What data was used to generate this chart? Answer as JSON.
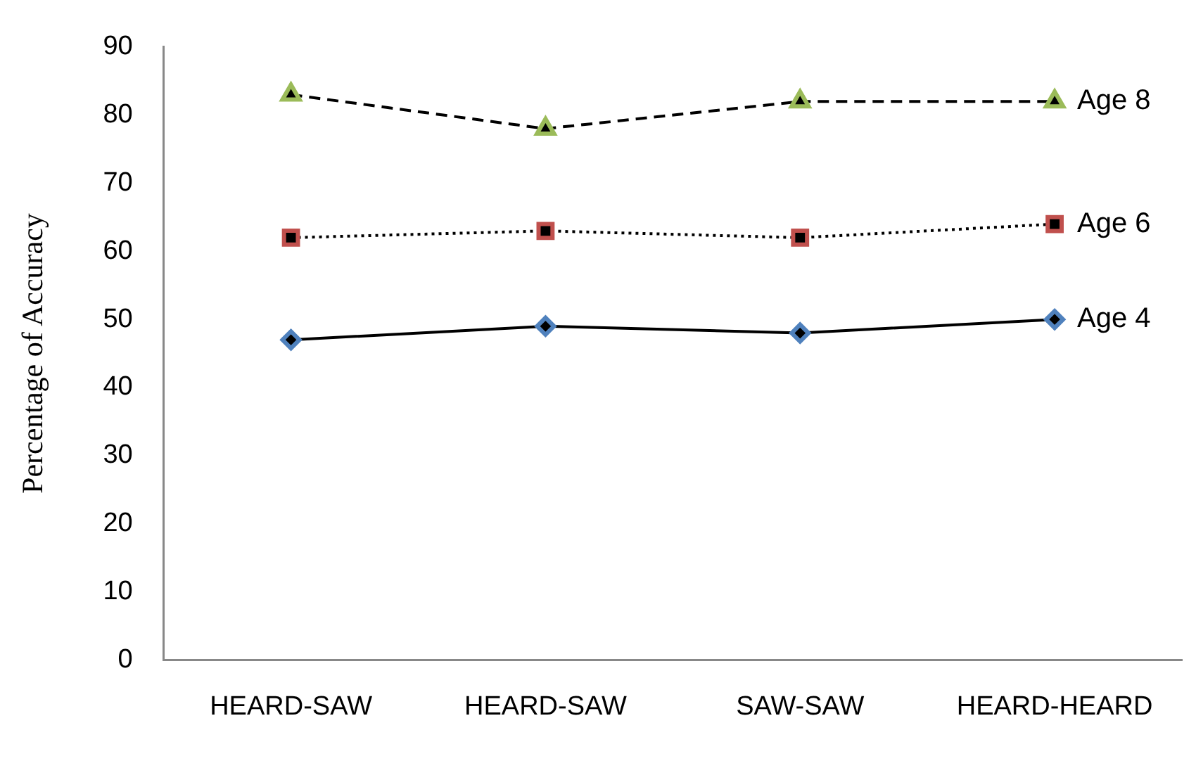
{
  "chart_data": {
    "type": "line",
    "ylabel": "Percentage of Accuracy",
    "categories": [
      "HEARD-SAW",
      "HEARD-SAW",
      "SAW-SAW",
      "HEARD-HEARD"
    ],
    "ylim": [
      0,
      90
    ],
    "yticks": [
      0,
      10,
      20,
      30,
      40,
      50,
      60,
      70,
      80,
      90
    ],
    "grid": false,
    "legend": false,
    "series": [
      {
        "name": "Age 4",
        "color": "#4f81bd",
        "marker": "diamond",
        "line_style": "solid",
        "values": [
          47,
          49,
          48,
          50
        ]
      },
      {
        "name": "Age 6",
        "color": "#c0504d",
        "marker": "square",
        "line_style": "dotted",
        "values": [
          62,
          63,
          62,
          64
        ]
      },
      {
        "name": "Age 8",
        "color": "#9bbb59",
        "marker": "triangle",
        "line_style": "dashed",
        "values": [
          83,
          78,
          82,
          82
        ]
      }
    ]
  }
}
